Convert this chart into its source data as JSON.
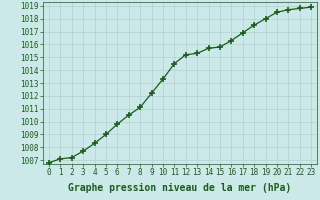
{
  "x": [
    0,
    1,
    2,
    3,
    4,
    5,
    6,
    7,
    8,
    9,
    10,
    11,
    12,
    13,
    14,
    15,
    16,
    17,
    18,
    19,
    20,
    21,
    22,
    23
  ],
  "y": [
    1006.8,
    1007.1,
    1007.2,
    1007.7,
    1008.3,
    1009.0,
    1009.8,
    1010.5,
    1011.1,
    1012.2,
    1013.3,
    1014.5,
    1015.2,
    1015.3,
    1015.7,
    1015.8,
    1016.3,
    1016.9,
    1017.5,
    1018.0,
    1018.5,
    1018.7,
    1018.8,
    1018.9
  ],
  "xlabel": "Graphe pression niveau de la mer (hPa)",
  "ylim_min": 1006.7,
  "ylim_max": 1019.3,
  "xlim_min": -0.5,
  "xlim_max": 23.5,
  "yticks": [
    1007,
    1008,
    1009,
    1010,
    1011,
    1012,
    1013,
    1014,
    1015,
    1016,
    1017,
    1018,
    1019
  ],
  "xticks": [
    0,
    1,
    2,
    3,
    4,
    5,
    6,
    7,
    8,
    9,
    10,
    11,
    12,
    13,
    14,
    15,
    16,
    17,
    18,
    19,
    20,
    21,
    22,
    23
  ],
  "line_color": "#1a5c1a",
  "marker": "+",
  "marker_size": 5,
  "marker_lw": 1.2,
  "line_width": 0.9,
  "bg_color": "#cce8e8",
  "grid_color": "#b0d0d0",
  "xlabel_fontsize": 7,
  "tick_fontsize": 5.5,
  "label_color": "#1a5c1a"
}
